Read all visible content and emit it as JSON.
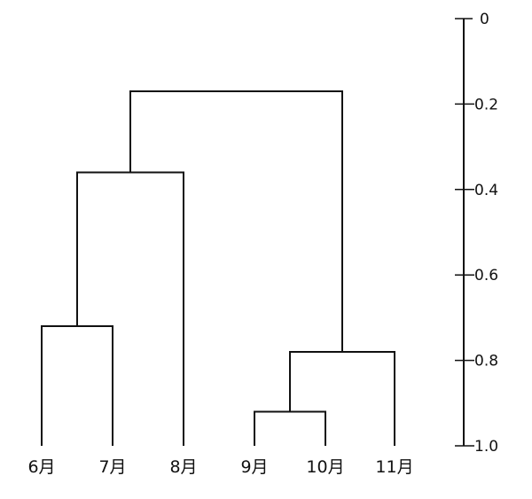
{
  "chart_data": {
    "type": "dendrogram",
    "leaves": [
      "6月",
      "7月",
      "8月",
      "9月",
      "10月",
      "11月"
    ],
    "merges": [
      {
        "left": "6月",
        "right": "7月",
        "height": 0.72
      },
      {
        "left": "9月",
        "right": "10月",
        "height": 0.92
      },
      {
        "left": "9月+10月",
        "right": "11月",
        "height": 0.78
      },
      {
        "left": "6月+7月",
        "right": "8月",
        "height": 0.36
      },
      {
        "left": "6月+7月+8月",
        "right": "9月+10月+11月",
        "height": 0.17
      }
    ],
    "axis": {
      "position": "right",
      "ylim": [
        0,
        1.0
      ],
      "inverted": true,
      "ticks": [
        "0",
        "0.2",
        "0.4",
        "0.6",
        "0.8",
        "1.0"
      ]
    },
    "line_color": "#111111"
  }
}
